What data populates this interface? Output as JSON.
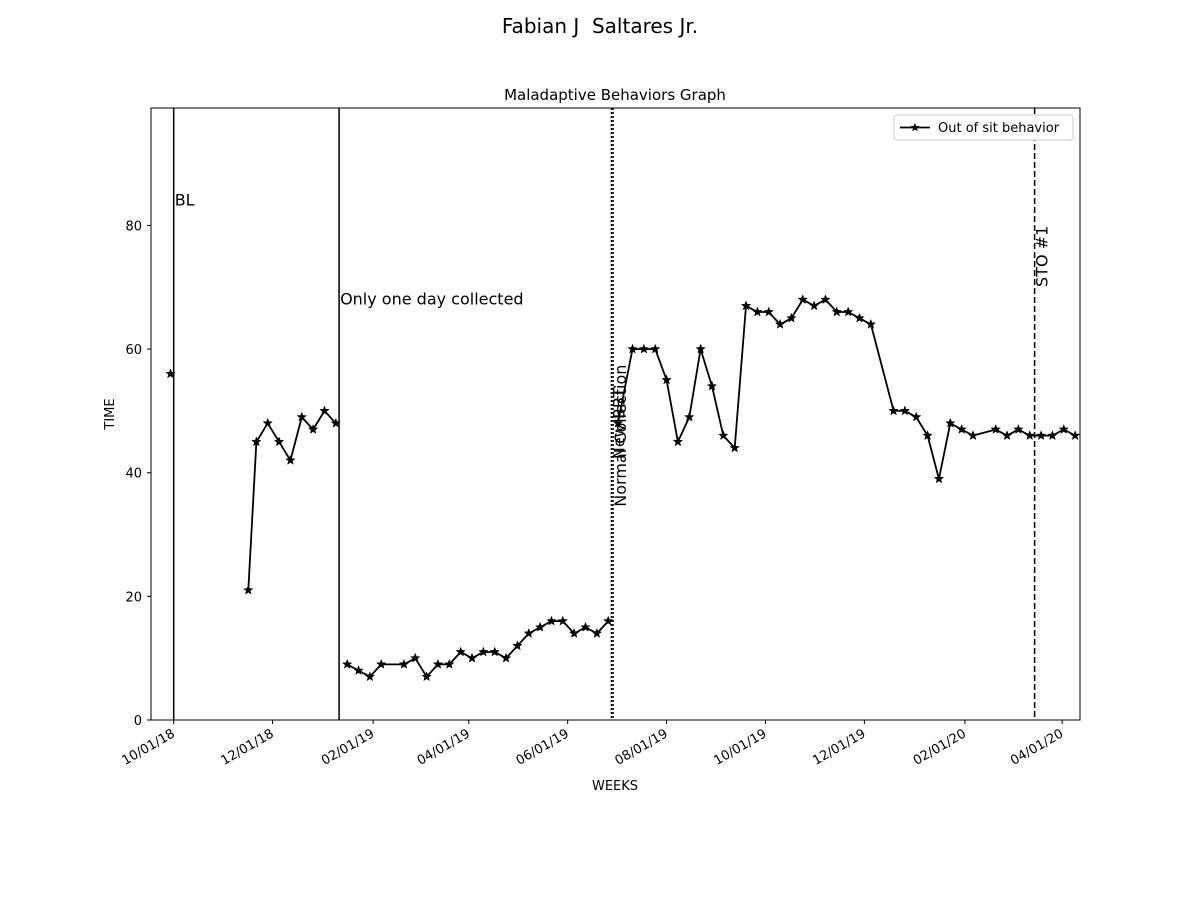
{
  "suptitle": "Fabian J  Saltares Jr.",
  "chart_data": {
    "type": "line",
    "title": "Maladaptive Behaviors Graph",
    "xlabel": "WEEKS",
    "ylabel": "TIME",
    "x_axis_type": "date",
    "xlim": [
      "2018-09-17",
      "2020-04-12"
    ],
    "ylim": [
      0,
      99
    ],
    "x_ticks": [
      "2018-10-01",
      "2018-12-01",
      "2019-02-01",
      "2019-04-01",
      "2019-06-01",
      "2019-08-01",
      "2019-10-01",
      "2019-12-01",
      "2020-02-01",
      "2020-04-01"
    ],
    "x_tick_labels": [
      "10/01/18",
      "12/01/18",
      "02/01/19",
      "04/01/19",
      "06/01/19",
      "08/01/19",
      "10/01/19",
      "12/01/19",
      "02/01/20",
      "04/01/20"
    ],
    "y_ticks": [
      0,
      20,
      40,
      60,
      80
    ],
    "y_tick_labels": [
      "0",
      "20",
      "40",
      "60",
      "80"
    ],
    "grid": false,
    "legend": {
      "placement": "upper right"
    },
    "series": [
      {
        "name": "Out of sit behavior",
        "color": "#000000",
        "marker": "star",
        "segments": [
          [
            {
              "x": "2018-09-29",
              "y": 56
            }
          ],
          [
            {
              "x": "2018-11-16",
              "y": 21
            },
            {
              "x": "2018-11-21",
              "y": 45
            },
            {
              "x": "2018-11-28",
              "y": 48
            },
            {
              "x": "2018-12-05",
              "y": 45
            },
            {
              "x": "2018-12-12",
              "y": 42
            },
            {
              "x": "2018-12-19",
              "y": 49
            },
            {
              "x": "2018-12-26",
              "y": 47
            },
            {
              "x": "2019-01-02",
              "y": 50
            },
            {
              "x": "2019-01-09",
              "y": 48
            }
          ],
          [
            {
              "x": "2019-01-16",
              "y": 9
            },
            {
              "x": "2019-01-23",
              "y": 8
            },
            {
              "x": "2019-01-30",
              "y": 7
            },
            {
              "x": "2019-02-06",
              "y": 9
            },
            {
              "x": "2019-02-20",
              "y": 9
            },
            {
              "x": "2019-02-27",
              "y": 10
            },
            {
              "x": "2019-03-06",
              "y": 7
            },
            {
              "x": "2019-03-13",
              "y": 9
            },
            {
              "x": "2019-03-20",
              "y": 9
            },
            {
              "x": "2019-03-27",
              "y": 11
            },
            {
              "x": "2019-04-03",
              "y": 10
            },
            {
              "x": "2019-04-10",
              "y": 11
            },
            {
              "x": "2019-04-17",
              "y": 11
            },
            {
              "x": "2019-04-24",
              "y": 10
            },
            {
              "x": "2019-05-01",
              "y": 12
            },
            {
              "x": "2019-05-08",
              "y": 14
            },
            {
              "x": "2019-05-15",
              "y": 15
            },
            {
              "x": "2019-05-22",
              "y": 16
            },
            {
              "x": "2019-05-29",
              "y": 16
            },
            {
              "x": "2019-06-05",
              "y": 14
            },
            {
              "x": "2019-06-12",
              "y": 15
            },
            {
              "x": "2019-06-19",
              "y": 14
            },
            {
              "x": "2019-06-26",
              "y": 16
            }
          ],
          [
            {
              "x": "2019-07-02",
              "y": 48
            },
            {
              "x": "2019-07-11",
              "y": 60
            },
            {
              "x": "2019-07-18",
              "y": 60
            },
            {
              "x": "2019-07-25",
              "y": 60
            },
            {
              "x": "2019-08-01",
              "y": 55
            },
            {
              "x": "2019-08-08",
              "y": 45
            },
            {
              "x": "2019-08-15",
              "y": 49
            },
            {
              "x": "2019-08-22",
              "y": 60
            },
            {
              "x": "2019-08-29",
              "y": 54
            },
            {
              "x": "2019-09-05",
              "y": 46
            },
            {
              "x": "2019-09-12",
              "y": 44
            },
            {
              "x": "2019-09-19",
              "y": 67
            },
            {
              "x": "2019-09-26",
              "y": 66
            },
            {
              "x": "2019-10-03",
              "y": 66
            },
            {
              "x": "2019-10-10",
              "y": 64
            },
            {
              "x": "2019-10-17",
              "y": 65
            },
            {
              "x": "2019-10-24",
              "y": 68
            },
            {
              "x": "2019-10-31",
              "y": 67
            },
            {
              "x": "2019-11-07",
              "y": 68
            },
            {
              "x": "2019-11-14",
              "y": 66
            },
            {
              "x": "2019-11-21",
              "y": 66
            },
            {
              "x": "2019-11-28",
              "y": 65
            },
            {
              "x": "2019-12-05",
              "y": 64
            },
            {
              "x": "2019-12-19",
              "y": 50
            },
            {
              "x": "2019-12-26",
              "y": 50
            },
            {
              "x": "2020-01-02",
              "y": 49
            },
            {
              "x": "2020-01-09",
              "y": 46
            },
            {
              "x": "2020-01-16",
              "y": 39
            },
            {
              "x": "2020-01-23",
              "y": 48
            },
            {
              "x": "2020-01-30",
              "y": 47
            },
            {
              "x": "2020-02-06",
              "y": 46
            },
            {
              "x": "2020-02-20",
              "y": 47
            },
            {
              "x": "2020-02-27",
              "y": 46
            },
            {
              "x": "2020-03-05",
              "y": 47
            },
            {
              "x": "2020-03-12",
              "y": 46
            },
            {
              "x": "2020-03-19",
              "y": 46
            },
            {
              "x": "2020-03-26",
              "y": 46
            },
            {
              "x": "2020-04-02",
              "y": 47
            },
            {
              "x": "2020-04-09",
              "y": 46
            }
          ]
        ]
      }
    ],
    "phase_lines": [
      {
        "x": "2018-10-01",
        "style": "solid",
        "label": "BL",
        "label_y": 84,
        "label_orientation": "horizontal"
      },
      {
        "x": "2019-01-11",
        "style": "solid",
        "label": "Only one day collected",
        "label_y": 68,
        "label_orientation": "horizontal"
      },
      {
        "x": "2019-06-28",
        "style": "dotted",
        "label": "New BBT",
        "label_y": 48,
        "label_orientation": "vertical"
      },
      {
        "x": "2019-06-29",
        "style": "dotted",
        "label": "Normal Collection",
        "label_y": 46,
        "label_orientation": "vertical"
      },
      {
        "x": "2020-03-15",
        "style": "dashed",
        "label": "STO #1",
        "label_y": 75,
        "label_orientation": "vertical"
      }
    ]
  }
}
